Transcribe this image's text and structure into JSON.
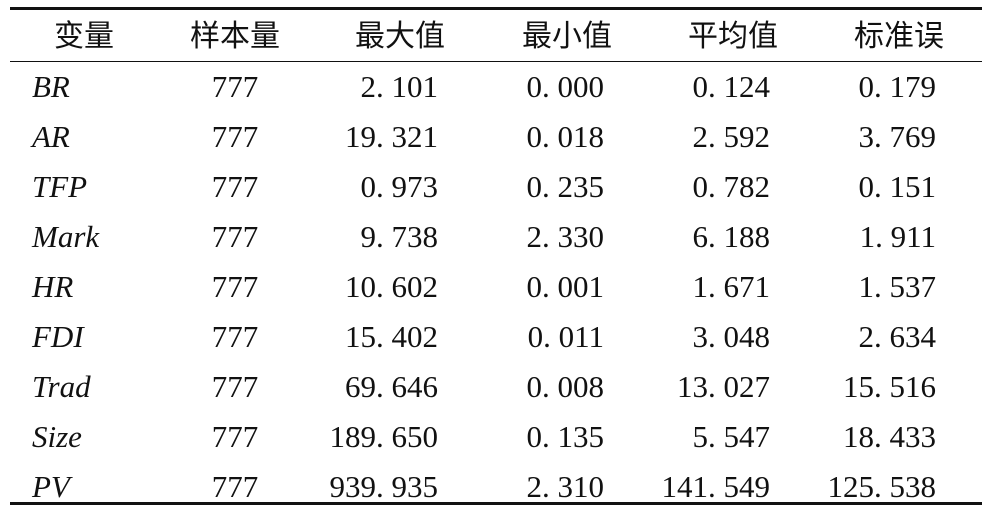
{
  "table": {
    "headers": [
      "变量",
      "样本量",
      "最大值",
      "最小值",
      "平均值",
      "标准误"
    ],
    "rows": [
      {
        "var": "BR",
        "n": "777",
        "max": "2. 101",
        "min": "0. 000",
        "mean": "0. 124",
        "se": "0. 179"
      },
      {
        "var": "AR",
        "n": "777",
        "max": "19. 321",
        "min": "0. 018",
        "mean": "2. 592",
        "se": "3. 769"
      },
      {
        "var": "TFP",
        "n": "777",
        "max": "0. 973",
        "min": "0. 235",
        "mean": "0. 782",
        "se": "0. 151"
      },
      {
        "var": "Mark",
        "n": "777",
        "max": "9. 738",
        "min": "2. 330",
        "mean": "6. 188",
        "se": "1. 911"
      },
      {
        "var": "HR",
        "n": "777",
        "max": "10. 602",
        "min": "0. 001",
        "mean": "1. 671",
        "se": "1. 537"
      },
      {
        "var": "FDI",
        "n": "777",
        "max": "15. 402",
        "min": "0. 011",
        "mean": "3. 048",
        "se": "2. 634"
      },
      {
        "var": "Trad",
        "n": "777",
        "max": "69. 646",
        "min": "0. 008",
        "mean": "13. 027",
        "se": "15. 516"
      },
      {
        "var": "Size",
        "n": "777",
        "max": "189. 650",
        "min": "0. 135",
        "mean": "5. 547",
        "se": "18. 433"
      },
      {
        "var": "PV",
        "n": "777",
        "max": "939. 935",
        "min": "2. 310",
        "mean": "141. 549",
        "se": "125. 538"
      }
    ]
  }
}
